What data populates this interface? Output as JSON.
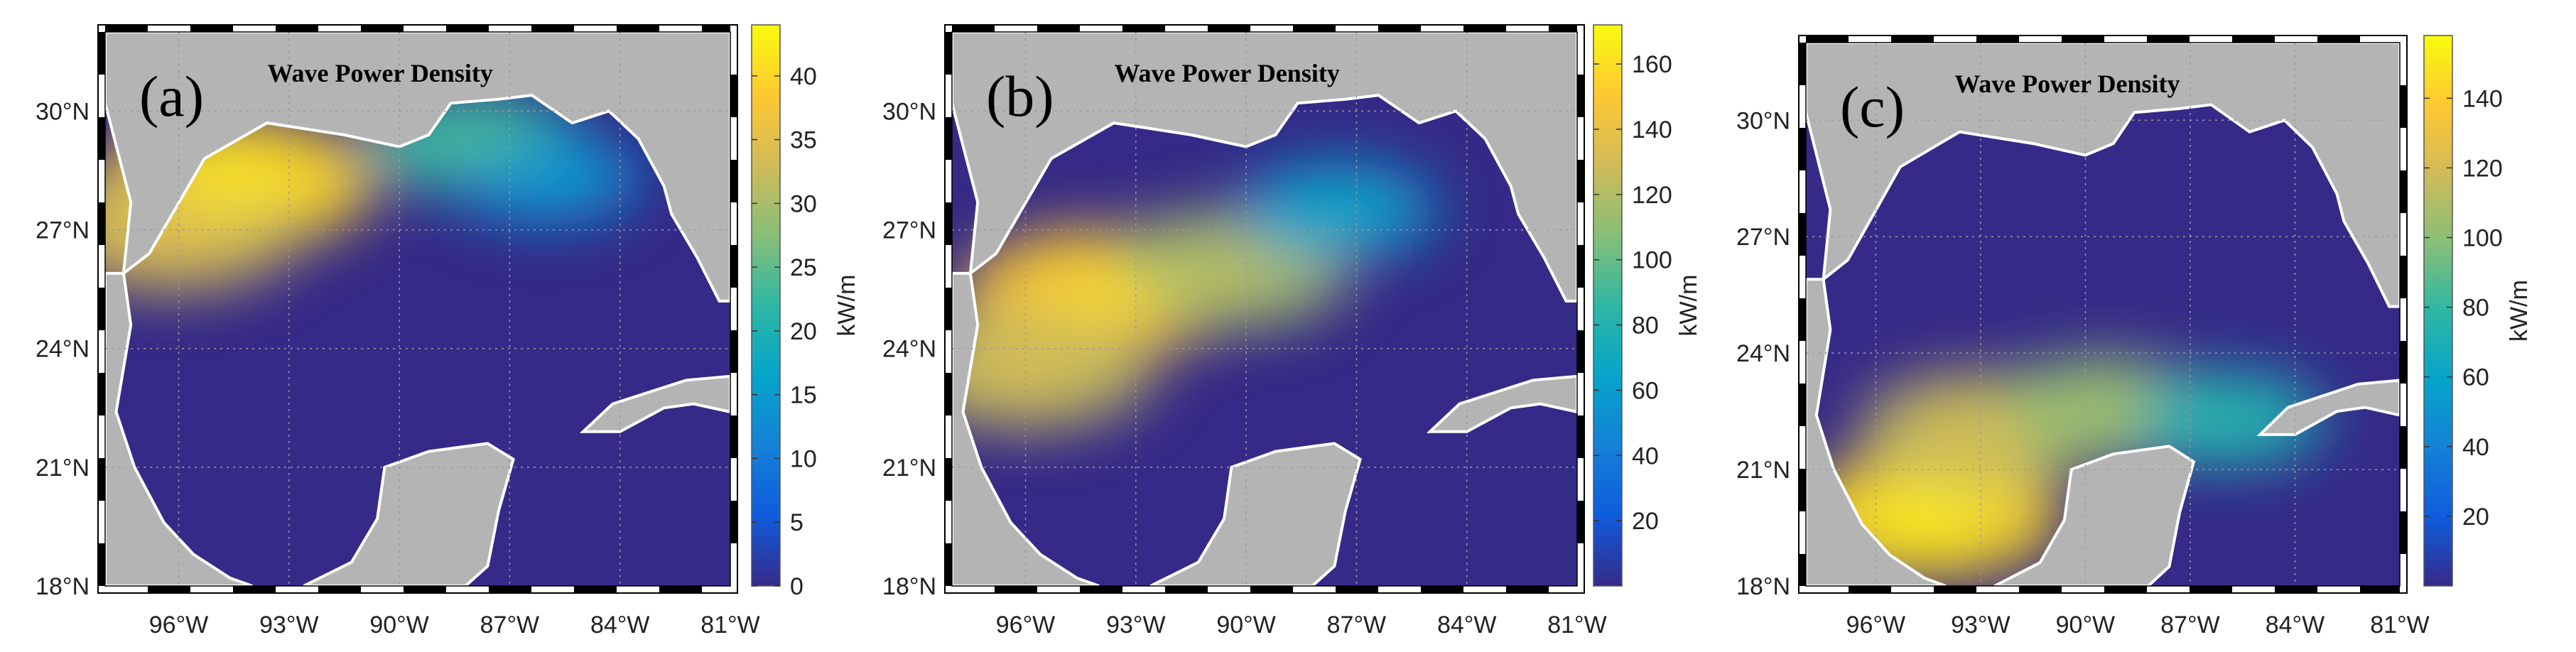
{
  "chart_data": [
    {
      "type": "heatmap",
      "panel_label": "(a)",
      "title": "Wave Power Density",
      "colorbar_label": "kW/m",
      "colorbar_ticks": [
        0,
        5,
        10,
        15,
        20,
        25,
        30,
        35,
        40
      ],
      "colorbar_range": [
        0,
        44
      ],
      "lon_ticks": [
        "96°W",
        "93°W",
        "90°W",
        "87°W",
        "84°W",
        "81°W"
      ],
      "lat_ticks": [
        "18°N",
        "21°N",
        "24°N",
        "27°N",
        "30°N"
      ],
      "hotspots": [
        {
          "lon": -94.5,
          "lat": 28.2,
          "value": 40
        },
        {
          "lon": -96.2,
          "lat": 27.0,
          "value": 33
        },
        {
          "lon": -88.0,
          "lat": 29.2,
          "value": 22
        },
        {
          "lon": -86.0,
          "lat": 28.3,
          "value": 13
        }
      ]
    },
    {
      "type": "heatmap",
      "panel_label": "(b)",
      "title": "Wave Power Density",
      "colorbar_label": "kW/m",
      "colorbar_ticks": [
        20,
        40,
        60,
        80,
        100,
        120,
        140,
        160
      ],
      "colorbar_range": [
        0,
        172
      ],
      "lon_ticks": [
        "96°W",
        "93°W",
        "90°W",
        "87°W",
        "84°W",
        "81°W"
      ],
      "lat_ticks": [
        "18°N",
        "21°N",
        "24°N",
        "27°N",
        "30°N"
      ],
      "hotspots": [
        {
          "lon": -94.0,
          "lat": 25.4,
          "value": 150
        },
        {
          "lon": -96.0,
          "lat": 23.5,
          "value": 125
        },
        {
          "lon": -90.5,
          "lat": 26.0,
          "value": 115
        },
        {
          "lon": -87.5,
          "lat": 27.5,
          "value": 60
        }
      ]
    },
    {
      "type": "heatmap",
      "panel_label": "(c)",
      "title": "Wave Power Density",
      "colorbar_label": "kW/m",
      "colorbar_ticks": [
        20,
        40,
        60,
        80,
        100,
        120,
        140
      ],
      "colorbar_range": [
        0,
        158
      ],
      "lon_ticks": [
        "96°W",
        "93°W",
        "90°W",
        "87°W",
        "84°W",
        "81°W"
      ],
      "lat_ticks": [
        "18°N",
        "21°N",
        "24°N",
        "27°N",
        "30°N"
      ],
      "hotspots": [
        {
          "lon": -94.5,
          "lat": 19.8,
          "value": 145
        },
        {
          "lon": -93.0,
          "lat": 22.0,
          "value": 115
        },
        {
          "lon": -89.5,
          "lat": 22.5,
          "value": 100
        },
        {
          "lon": -86.0,
          "lat": 22.3,
          "value": 70
        }
      ]
    }
  ],
  "colors": {
    "land": "#b4b4b4",
    "viridis": [
      "#352a87",
      "#0f5cdd",
      "#1481d6",
      "#06a4ca",
      "#2eb7a4",
      "#87bf77",
      "#d1bb59",
      "#fec832",
      "#f9fb0e"
    ]
  }
}
